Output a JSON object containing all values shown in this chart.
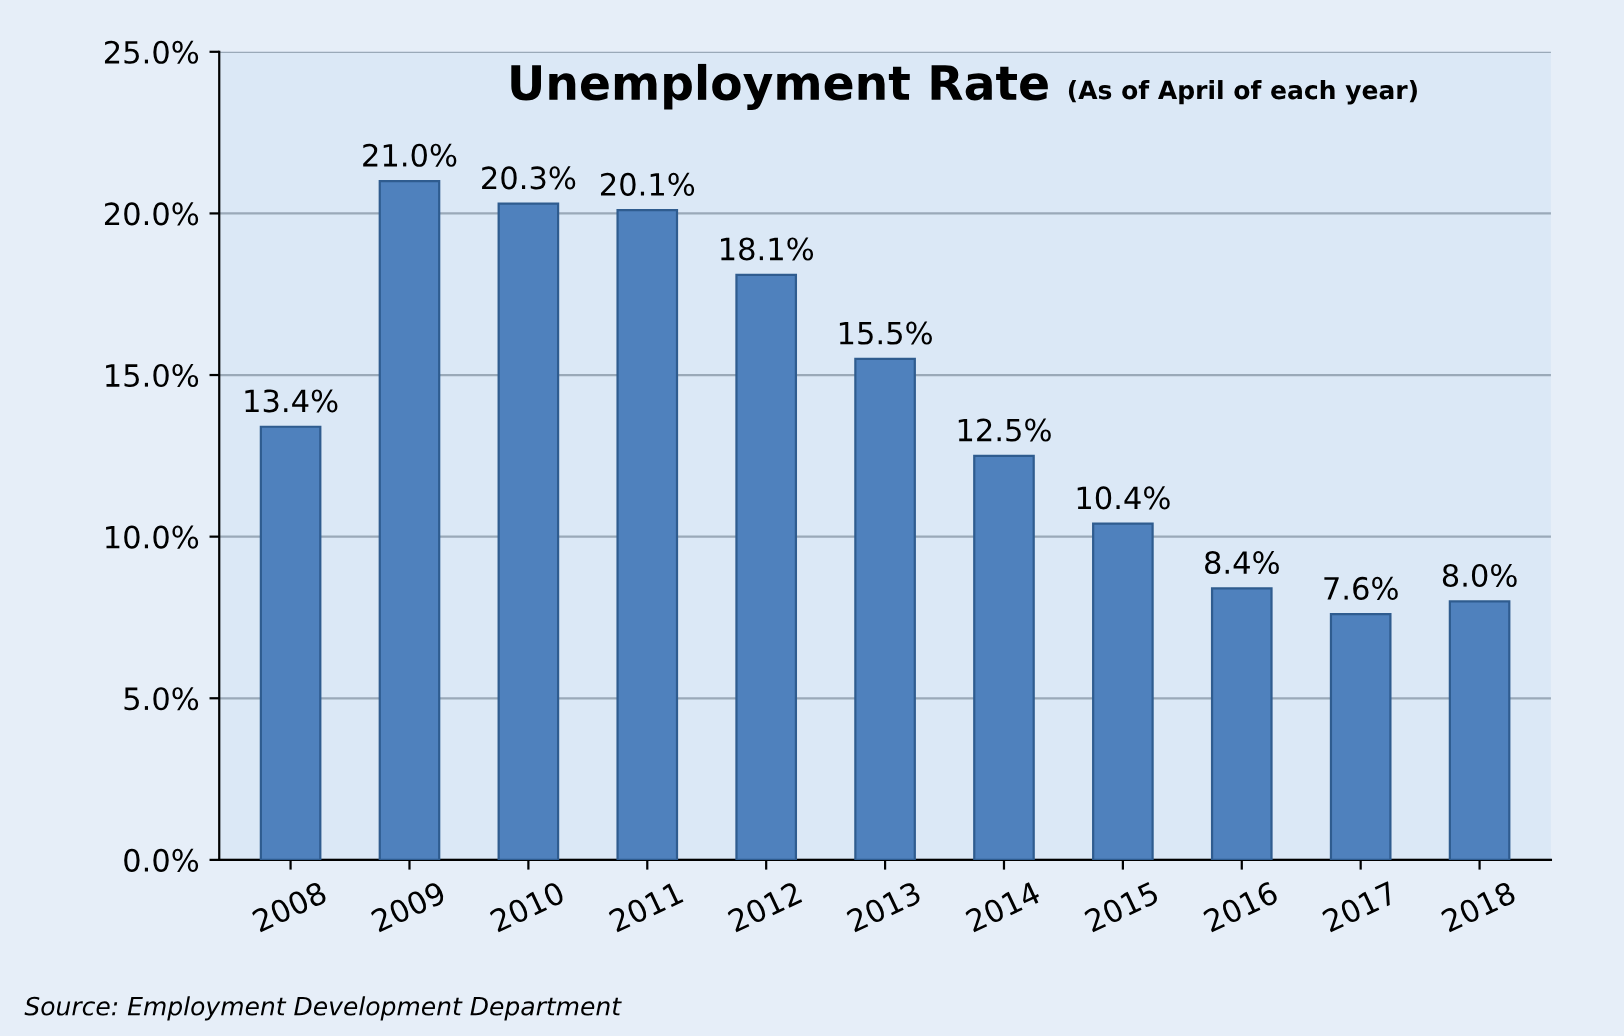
{
  "chart_data": {
    "type": "bar",
    "title": "Unemployment Rate",
    "subtitle": "(As of April of each year)",
    "categories": [
      "2008",
      "2009",
      "2010",
      "2011",
      "2012",
      "2013",
      "2014",
      "2015",
      "2016",
      "2017",
      "2018"
    ],
    "values": [
      13.4,
      21.0,
      20.3,
      20.1,
      18.1,
      15.5,
      12.5,
      10.4,
      8.4,
      7.6,
      8.0
    ],
    "value_labels": [
      "13.4%",
      "21.0%",
      "20.3%",
      "20.1%",
      "18.1%",
      "15.5%",
      "12.5%",
      "10.4%",
      "8.4%",
      "7.6%",
      "8.0%"
    ],
    "color": "#4f81bd",
    "ylim": [
      0,
      25
    ],
    "yticks": [
      {
        "value": 0,
        "label": "0.0%"
      },
      {
        "value": 5,
        "label": "5.0%"
      },
      {
        "value": 10,
        "label": "10.0%"
      },
      {
        "value": 15,
        "label": "15.0%"
      },
      {
        "value": 20,
        "label": "20.0%"
      },
      {
        "value": 25,
        "label": "25.0%"
      }
    ],
    "grid": "y",
    "annotations": [
      "Source: Employment Development Department"
    ]
  }
}
